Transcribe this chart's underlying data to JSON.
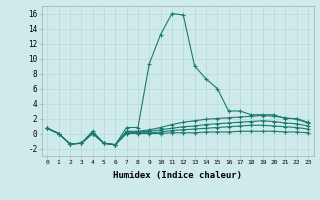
{
  "xlabel": "Humidex (Indice chaleur)",
  "background_color": "#ceeaea",
  "grid_color": "#b8d8d8",
  "line_color": "#1a7a6e",
  "xlim": [
    -0.5,
    23.5
  ],
  "ylim": [
    -3.0,
    17.0
  ],
  "xticks": [
    0,
    1,
    2,
    3,
    4,
    5,
    6,
    7,
    8,
    9,
    10,
    11,
    12,
    13,
    14,
    15,
    16,
    17,
    18,
    19,
    20,
    21,
    22,
    23
  ],
  "yticks": [
    -2,
    0,
    2,
    4,
    6,
    8,
    10,
    12,
    14,
    16
  ],
  "series": [
    [
      0.7,
      0.0,
      -1.4,
      -1.3,
      0.3,
      -1.3,
      -1.5,
      0.8,
      0.8,
      9.3,
      13.2,
      16.0,
      15.8,
      9.0,
      7.3,
      6.0,
      3.0,
      3.0,
      2.5,
      2.5,
      2.5,
      2.0,
      2.0,
      1.5
    ],
    [
      0.7,
      0.0,
      -1.4,
      -1.3,
      0.1,
      -1.3,
      -1.5,
      0.3,
      0.3,
      0.5,
      0.8,
      1.2,
      1.5,
      1.7,
      1.9,
      2.0,
      2.1,
      2.2,
      2.3,
      2.4,
      2.3,
      2.1,
      1.9,
      1.4
    ],
    [
      0.7,
      0.0,
      -1.4,
      -1.3,
      0.0,
      -1.3,
      -1.5,
      0.2,
      0.2,
      0.3,
      0.5,
      0.7,
      0.9,
      1.0,
      1.2,
      1.3,
      1.4,
      1.5,
      1.6,
      1.7,
      1.6,
      1.4,
      1.3,
      1.0
    ],
    [
      0.7,
      0.0,
      -1.4,
      -1.3,
      0.0,
      -1.3,
      -1.5,
      0.1,
      0.1,
      0.1,
      0.2,
      0.4,
      0.5,
      0.6,
      0.7,
      0.8,
      0.9,
      1.0,
      1.1,
      1.1,
      1.0,
      0.9,
      0.8,
      0.6
    ],
    [
      0.7,
      0.0,
      -1.4,
      -1.3,
      0.0,
      -1.3,
      -1.5,
      0.0,
      0.0,
      0.0,
      0.0,
      0.1,
      0.1,
      0.1,
      0.2,
      0.2,
      0.2,
      0.3,
      0.3,
      0.3,
      0.3,
      0.2,
      0.2,
      0.1
    ]
  ]
}
